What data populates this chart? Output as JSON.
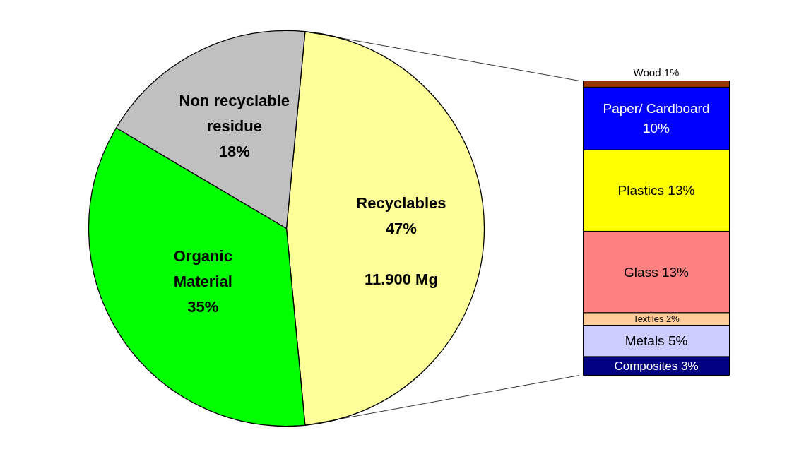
{
  "chart_data": [
    {
      "type": "pie",
      "categories": [
        "Recyclables",
        "Organic Material",
        "Non recyclable residue"
      ],
      "values": [
        47,
        35,
        18
      ],
      "colors": [
        "#ffff99",
        "#00ff00",
        "#c0c0c0"
      ],
      "value_labels": [
        "47%",
        "35%",
        "18%"
      ],
      "annotations": [
        "11.900 Mg"
      ]
    },
    {
      "type": "bar",
      "stacked": true,
      "categories": [
        null
      ],
      "series": [
        {
          "name": "Composites",
          "color": "#000080",
          "values": [
            3
          ],
          "value_labels": [
            "3%"
          ]
        },
        {
          "name": "Metals",
          "color": "#ccccff",
          "values": [
            5
          ],
          "value_labels": [
            "5%"
          ]
        },
        {
          "name": "Textiles",
          "color": "#ffcc99",
          "values": [
            2
          ],
          "value_labels": [
            "2%"
          ]
        },
        {
          "name": "Glass",
          "color": "#ff8080",
          "values": [
            13
          ],
          "value_labels": [
            "13%"
          ]
        },
        {
          "name": "Plastics",
          "color": "#ffff00",
          "values": [
            13
          ],
          "value_labels": [
            "13%"
          ]
        },
        {
          "name": "Paper/ Cardboard",
          "color": "#0000ff",
          "values": [
            10
          ],
          "value_labels": [
            "10%"
          ]
        },
        {
          "name": "Wood",
          "color": "#993300",
          "values": [
            1
          ],
          "value_labels": [
            "1%"
          ]
        }
      ]
    }
  ]
}
